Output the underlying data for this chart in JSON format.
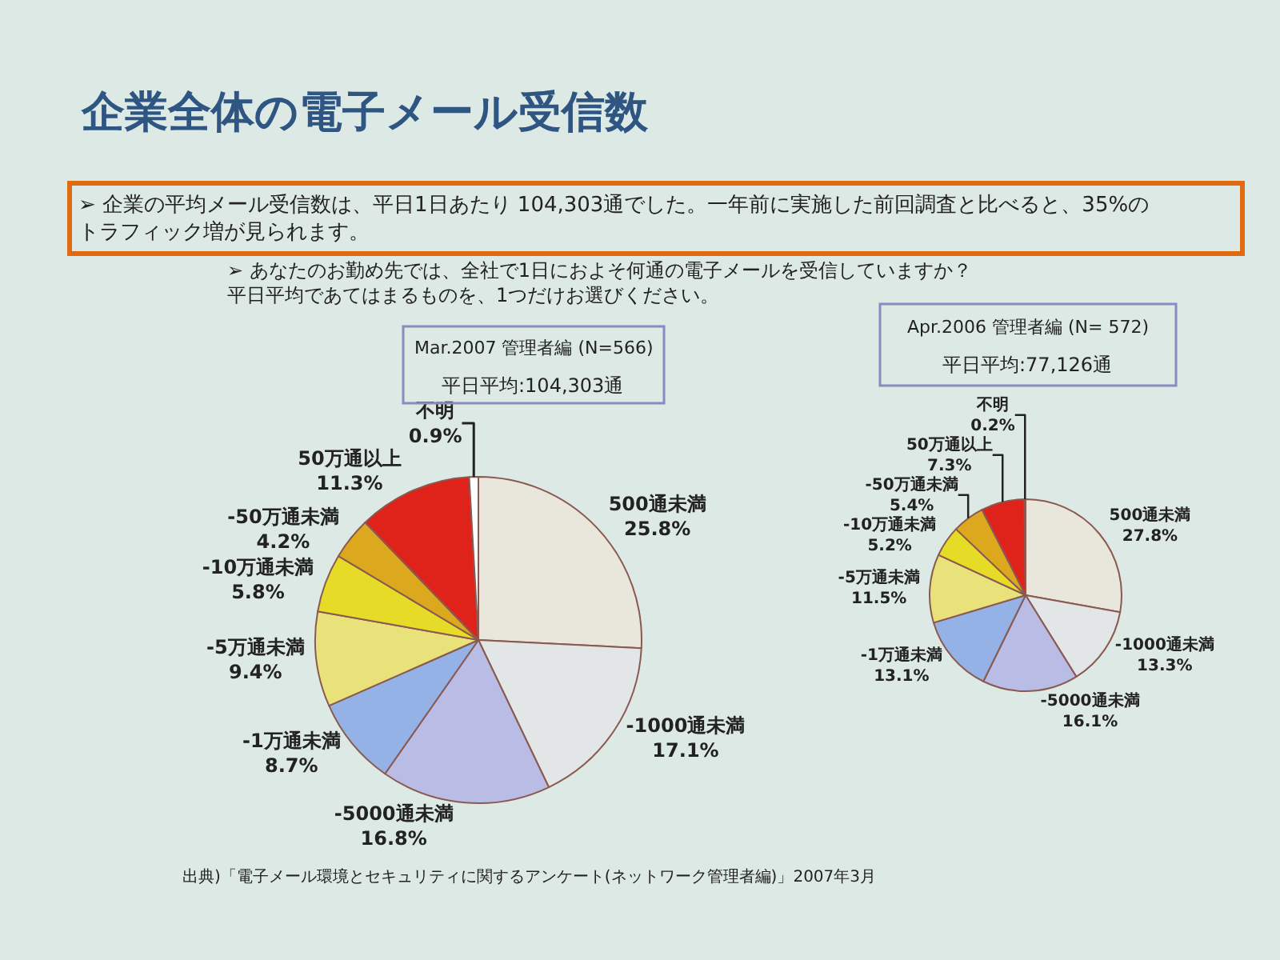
{
  "chart_data": [
    {
      "type": "pie",
      "title": "Mar.2007 管理者編 (N=566)",
      "subtitle": "平日平均:104,303通",
      "categories": [
        "500通未満",
        "-1000通未満",
        "-5000通未満",
        "-1万通未満",
        "-5万通未満",
        "-10万通未満",
        "-50万通未満",
        "50万通以上",
        "不明"
      ],
      "values": [
        25.8,
        17.1,
        16.8,
        8.7,
        9.4,
        5.8,
        4.2,
        11.3,
        0.9
      ],
      "value_labels": [
        "25.8%",
        "17.1%",
        "16.8%",
        "8.7%",
        "9.4%",
        "5.8%",
        "4.2%",
        "11.3%",
        "0.9%"
      ],
      "colors": [
        "#e9e6dc",
        "#e2e6e6",
        "#b9bde6",
        "#94b2e6",
        "#e9e27a",
        "#e6dc28",
        "#dca81e",
        "#e0231a",
        "#ffffff"
      ],
      "annotations": [
        "企業全体の電子メール受信数",
        "➢ 企業の平均メール受信数は、平日1日あたり 104,303通でした。一年前に実施した前回調査と比べると、35%のトラフィック増が見られます。",
        "➢ あなたのお勤め先では、全社で1日におよそ何通の電子メールを受信していますか？平日平均であてはまるものを、1つだけお選びください。",
        "出典)「電子メール環境とセキュリティに関するアンケート(ネットワーク管理者編)」2007年3月"
      ]
    },
    {
      "type": "pie",
      "title": "Apr.2006 管理者編 (N= 572)",
      "subtitle": "平日平均:77,126通",
      "categories": [
        "500通未満",
        "-1000通未満",
        "-5000通未満",
        "-1万通未満",
        "-5万通未満",
        "-10万通未満",
        "-50万通未満",
        "50万通以上",
        "不明"
      ],
      "values": [
        27.8,
        13.3,
        16.1,
        13.1,
        11.5,
        5.2,
        5.4,
        7.3,
        0.2
      ],
      "value_labels": [
        "27.8%",
        "13.3%",
        "16.1%",
        "13.1%",
        "11.5%",
        "5.2%",
        "5.4%",
        "7.3%",
        "0.2%"
      ],
      "colors": [
        "#e9e6dc",
        "#e2e6e6",
        "#b9bde6",
        "#94b2e6",
        "#e9e27a",
        "#e6dc28",
        "#dca81e",
        "#e0231a",
        "#ffffff"
      ]
    }
  ]
}
